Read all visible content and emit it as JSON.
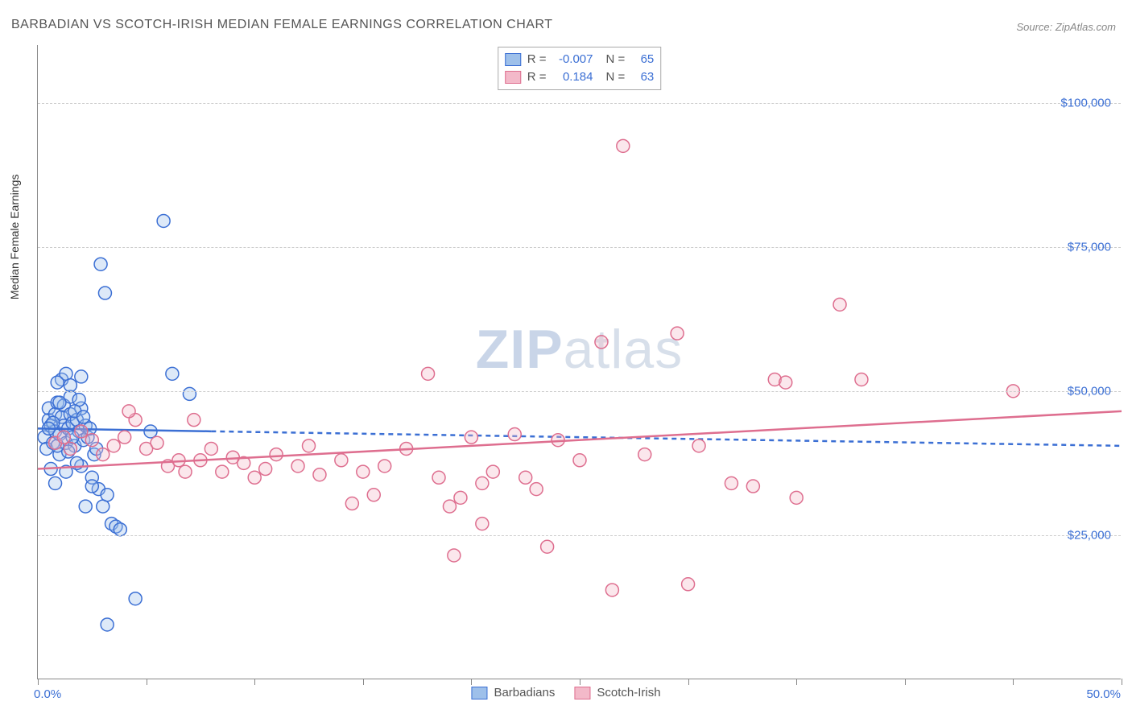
{
  "title": "BARBADIAN VS SCOTCH-IRISH MEDIAN FEMALE EARNINGS CORRELATION CHART",
  "source": "Source: ZipAtlas.com",
  "watermark_1": "ZIP",
  "watermark_2": "atlas",
  "chart": {
    "type": "scatter",
    "xlim": [
      0,
      50
    ],
    "ylim": [
      0,
      110000
    ],
    "x_min_label": "0.0%",
    "x_max_label": "50.0%",
    "y_ticks": [
      25000,
      50000,
      75000,
      100000
    ],
    "y_tick_labels": [
      "$25,000",
      "$50,000",
      "$75,000",
      "$100,000"
    ],
    "x_tick_positions": [
      0,
      5,
      10,
      15,
      20,
      25,
      30,
      35,
      40,
      45,
      50
    ],
    "y_axis_label": "Median Female Earnings",
    "background_color": "#ffffff",
    "grid_color": "#cccccc",
    "marker_radius": 8,
    "marker_stroke_width": 1.5,
    "marker_fill_opacity": 0.35,
    "trend_line_width": 2.5,
    "trend_dash": "6,5",
    "series": [
      {
        "name": "Barbadians",
        "color_stroke": "#3b6fd4",
        "color_fill": "#9ec0ea",
        "r_value": "-0.007",
        "n_value": "65",
        "trend": {
          "x1": 0,
          "y1": 43500,
          "x2": 50,
          "y2": 40500,
          "solid_until_x": 8
        },
        "points": [
          [
            0.3,
            42000
          ],
          [
            0.4,
            40000
          ],
          [
            0.5,
            45000
          ],
          [
            0.5,
            47000
          ],
          [
            0.6,
            44000
          ],
          [
            0.7,
            41000
          ],
          [
            0.8,
            46000
          ],
          [
            0.8,
            43000
          ],
          [
            0.9,
            48000
          ],
          [
            1.0,
            42500
          ],
          [
            1.0,
            39000
          ],
          [
            1.1,
            45500
          ],
          [
            1.2,
            44000
          ],
          [
            1.2,
            47500
          ],
          [
            1.3,
            41000
          ],
          [
            1.4,
            43500
          ],
          [
            1.5,
            46000
          ],
          [
            1.5,
            49000
          ],
          [
            1.6,
            44500
          ],
          [
            1.7,
            40500
          ],
          [
            1.8,
            45000
          ],
          [
            1.9,
            43000
          ],
          [
            2.0,
            47000
          ],
          [
            2.0,
            37000
          ],
          [
            2.1,
            41500
          ],
          [
            2.2,
            44000
          ],
          [
            2.3,
            42000
          ],
          [
            2.5,
            35000
          ],
          [
            2.6,
            39000
          ],
          [
            2.8,
            33000
          ],
          [
            3.0,
            30000
          ],
          [
            3.2,
            32000
          ],
          [
            3.4,
            27000
          ],
          [
            3.6,
            26500
          ],
          [
            3.8,
            26000
          ],
          [
            2.0,
            52500
          ],
          [
            1.1,
            52000
          ],
          [
            1.3,
            53000
          ],
          [
            0.9,
            51500
          ],
          [
            2.9,
            72000
          ],
          [
            3.1,
            67000
          ],
          [
            5.8,
            79500
          ],
          [
            6.2,
            53000
          ],
          [
            7.0,
            49500
          ],
          [
            2.2,
            30000
          ],
          [
            2.5,
            33500
          ],
          [
            1.3,
            36000
          ],
          [
            4.5,
            14000
          ],
          [
            3.2,
            9500
          ],
          [
            5.2,
            43000
          ],
          [
            1.8,
            37500
          ],
          [
            1.5,
            51000
          ],
          [
            1.9,
            48500
          ],
          [
            0.6,
            36500
          ],
          [
            0.8,
            34000
          ],
          [
            1.4,
            39500
          ],
          [
            1.7,
            46500
          ],
          [
            1.0,
            48000
          ],
          [
            0.7,
            44500
          ],
          [
            1.6,
            42000
          ],
          [
            2.1,
            45500
          ],
          [
            2.4,
            43500
          ],
          [
            2.7,
            40000
          ],
          [
            0.5,
            43500
          ],
          [
            0.9,
            40500
          ]
        ]
      },
      {
        "name": "Scotch-Irish",
        "color_stroke": "#de6e8f",
        "color_fill": "#f3b9c9",
        "r_value": "0.184",
        "n_value": "63",
        "trend": {
          "x1": 0,
          "y1": 36500,
          "x2": 50,
          "y2": 46500,
          "solid_until_x": 50
        },
        "points": [
          [
            0.8,
            41000
          ],
          [
            1.2,
            42000
          ],
          [
            1.5,
            40000
          ],
          [
            2.0,
            43000
          ],
          [
            2.5,
            41500
          ],
          [
            3.0,
            39000
          ],
          [
            3.5,
            40500
          ],
          [
            4.0,
            42000
          ],
          [
            4.5,
            45000
          ],
          [
            5.0,
            40000
          ],
          [
            5.5,
            41000
          ],
          [
            6.0,
            37000
          ],
          [
            6.5,
            38000
          ],
          [
            7.5,
            38000
          ],
          [
            8.0,
            40000
          ],
          [
            8.5,
            36000
          ],
          [
            9.0,
            38500
          ],
          [
            9.5,
            37500
          ],
          [
            10.0,
            35000
          ],
          [
            10.5,
            36500
          ],
          [
            11.0,
            39000
          ],
          [
            12.0,
            37000
          ],
          [
            13.0,
            35500
          ],
          [
            14.0,
            38000
          ],
          [
            15.0,
            36000
          ],
          [
            15.5,
            32000
          ],
          [
            16.0,
            37000
          ],
          [
            17.0,
            40000
          ],
          [
            18.0,
            53000
          ],
          [
            18.5,
            35000
          ],
          [
            19.0,
            30000
          ],
          [
            19.5,
            31500
          ],
          [
            20.0,
            42000
          ],
          [
            20.5,
            27000
          ],
          [
            20.5,
            34000
          ],
          [
            21.0,
            36000
          ],
          [
            22.0,
            42500
          ],
          [
            22.5,
            35000
          ],
          [
            23.0,
            33000
          ],
          [
            23.5,
            23000
          ],
          [
            24.0,
            41500
          ],
          [
            25.0,
            38000
          ],
          [
            26.0,
            58500
          ],
          [
            26.5,
            15500
          ],
          [
            27.0,
            92500
          ],
          [
            28.0,
            39000
          ],
          [
            29.5,
            60000
          ],
          [
            30.0,
            16500
          ],
          [
            30.5,
            40500
          ],
          [
            32.0,
            34000
          ],
          [
            33.0,
            33500
          ],
          [
            34.0,
            52000
          ],
          [
            34.5,
            51500
          ],
          [
            35.0,
            31500
          ],
          [
            37.0,
            65000
          ],
          [
            38.0,
            52000
          ],
          [
            45.0,
            50000
          ],
          [
            4.2,
            46500
          ],
          [
            7.2,
            45000
          ],
          [
            12.5,
            40500
          ],
          [
            14.5,
            30500
          ],
          [
            19.2,
            21500
          ],
          [
            6.8,
            36000
          ]
        ]
      }
    ]
  },
  "stats_legend": {
    "r_label": "R =",
    "n_label": "N ="
  }
}
